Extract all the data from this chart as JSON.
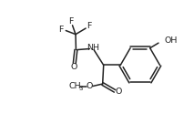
{
  "bg_color": "#ffffff",
  "line_color": "#222222",
  "line_width": 1.1,
  "font_size": 6.8,
  "fig_width": 2.13,
  "fig_height": 1.47,
  "dpi": 100,
  "xlim": [
    0,
    10
  ],
  "ylim": [
    0,
    7
  ]
}
